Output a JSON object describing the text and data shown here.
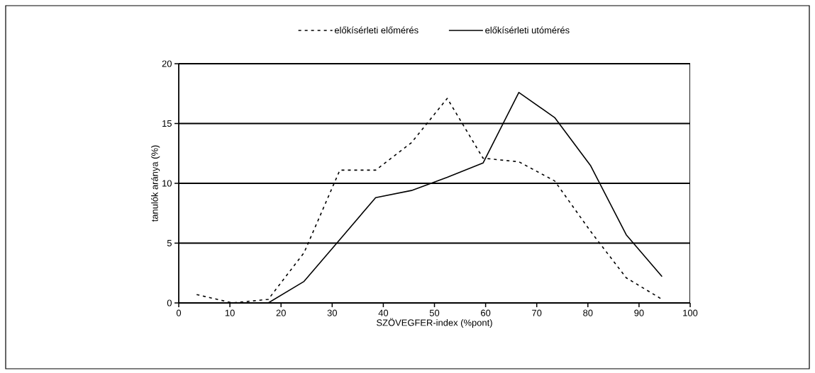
{
  "chart_data": {
    "type": "line",
    "xlabel": "SZÖVEGFER-index (%pont)",
    "ylabel": "tanulók aránya (%)",
    "x": [
      3.5,
      10.5,
      17.5,
      24.5,
      31.5,
      38.5,
      45.5,
      52.5,
      59.5,
      66.5,
      73.5,
      80.5,
      87.5,
      94.5
    ],
    "series": [
      {
        "name": "előkísérleti előmérés",
        "color": "#000000",
        "line_style": "dashed",
        "values": [
          0.7,
          0,
          0.3,
          4.2,
          11.1,
          11.1,
          13.4,
          17.1,
          12.1,
          11.8,
          10.2,
          6.0,
          2.1,
          0.3
        ]
      },
      {
        "name": "előkísérleti utómérés",
        "color": "#000000",
        "line_style": "solid",
        "values": [
          null,
          null,
          0,
          1.8,
          5.3,
          8.8,
          9.4,
          10.5,
          11.7,
          17.6,
          15.5,
          11.5,
          5.7,
          2.2
        ]
      }
    ],
    "xlim": [
      0,
      100
    ],
    "ylim": [
      0,
      20
    ],
    "xticks": [
      0,
      10,
      20,
      30,
      40,
      50,
      60,
      70,
      80,
      90,
      100
    ],
    "yticks": [
      0,
      5,
      10,
      15,
      20
    ],
    "grid": "y",
    "legend": "top"
  }
}
